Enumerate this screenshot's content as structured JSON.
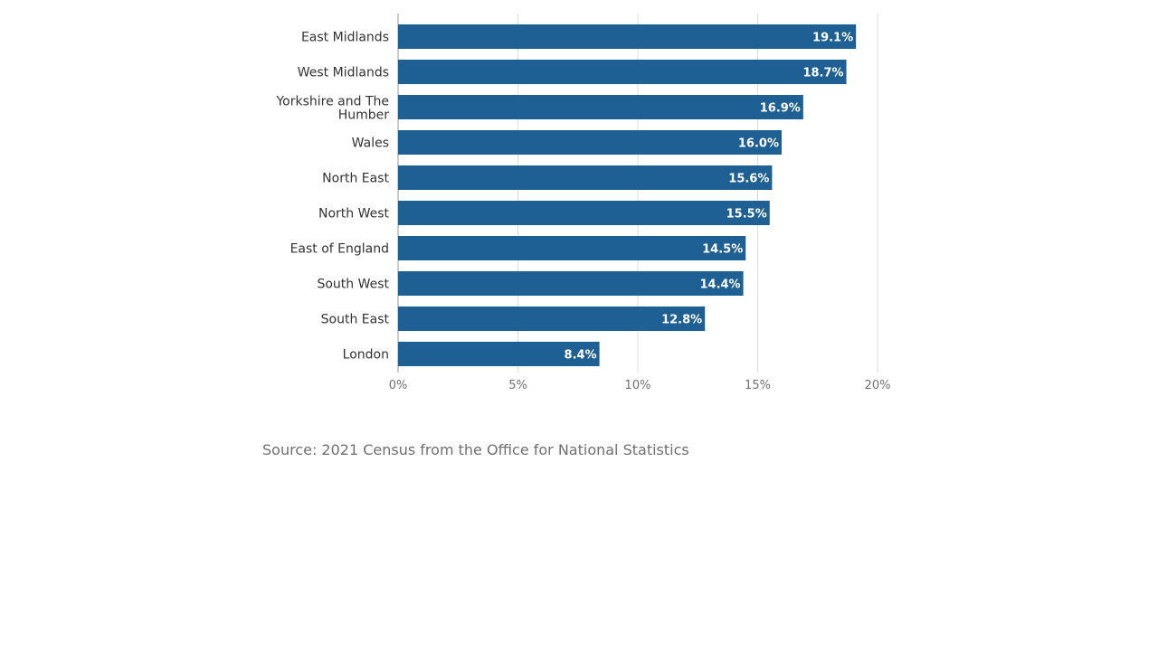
{
  "chart_data": {
    "type": "bar",
    "orientation": "horizontal",
    "categories": [
      "East Midlands",
      "West Midlands",
      "Yorkshire and The Humber",
      "Wales",
      "North East",
      "North West",
      "East of England",
      "South West",
      "South East",
      "London"
    ],
    "values": [
      19.1,
      18.7,
      16.9,
      16.0,
      15.6,
      15.5,
      14.5,
      14.4,
      12.8,
      8.4
    ],
    "value_labels": [
      "19.1%",
      "18.7%",
      "16.9%",
      "16.0%",
      "15.6%",
      "15.5%",
      "14.5%",
      "14.4%",
      "12.8%",
      "8.4%"
    ],
    "x_ticks": [
      "0%",
      "5%",
      "10%",
      "15%",
      "20%"
    ],
    "xlim": [
      0,
      20
    ],
    "grid": true,
    "bar_color": "#1f6094",
    "title": "",
    "xlabel": "",
    "ylabel": ""
  },
  "source": "Source: 2021 Census from the Office for National Statistics"
}
